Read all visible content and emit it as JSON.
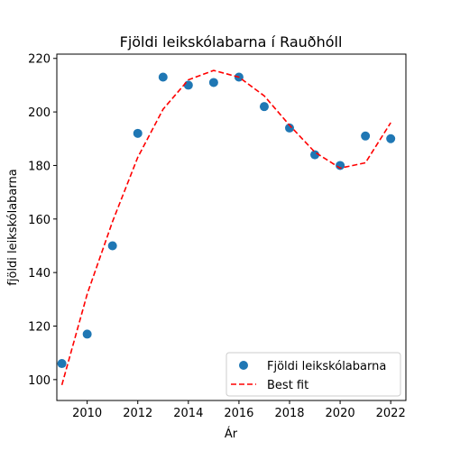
{
  "chart_data": {
    "type": "scatter",
    "title": "Fjöldi leikskólabarna í Rauðhóll",
    "xlabel": "Ár",
    "ylabel": "fjöldi leikskólabarna",
    "xlim": [
      2008.8,
      2022.6
    ],
    "ylim": [
      92.2,
      221.6
    ],
    "xticks": [
      2010,
      2012,
      2014,
      2016,
      2018,
      2020,
      2022
    ],
    "yticks": [
      100,
      120,
      140,
      160,
      180,
      200,
      220
    ],
    "grid": false,
    "legend_position": "lower right",
    "series": [
      {
        "name": "Fjöldi leikskólabarna",
        "kind": "scatter",
        "color": "#1f77b4",
        "x": [
          2009,
          2010,
          2011,
          2012,
          2013,
          2014,
          2015,
          2016,
          2017,
          2018,
          2019,
          2020,
          2021,
          2022
        ],
        "y": [
          106,
          117,
          150,
          192,
          213,
          210,
          211,
          213,
          202,
          194,
          184,
          180,
          191,
          190
        ]
      },
      {
        "name": "Best fit",
        "kind": "line",
        "style": "dashed",
        "color": "#ff0000",
        "x": [
          2009,
          2010,
          2011,
          2012,
          2013,
          2014,
          2015,
          2016,
          2017,
          2018,
          2019,
          2020,
          2021,
          2022
        ],
        "y": [
          98,
          132,
          159,
          183,
          201,
          212,
          215.5,
          213,
          206,
          195,
          185,
          179,
          181,
          196
        ]
      }
    ]
  }
}
